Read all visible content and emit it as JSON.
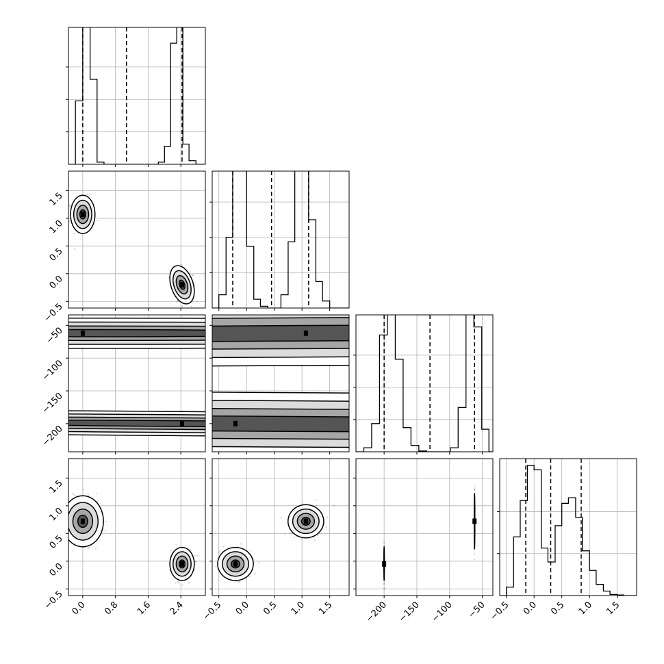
{
  "chart_data": {
    "type": "corner",
    "grid": true,
    "parameters": [
      {
        "range": [
          -0.35,
          3.0
        ],
        "ticks": [
          0.0,
          0.8,
          1.6,
          2.4
        ],
        "tick_labels": [
          "0.0",
          "0.8",
          "1.6",
          "2.4"
        ],
        "quantiles": [
          0.0,
          1.07,
          2.43
        ],
        "histogram": {
          "edges": [
            -0.35,
            -0.18,
            0.0,
            0.18,
            0.35,
            0.52,
            1.85,
            2.0,
            2.15,
            2.3,
            2.45,
            2.6,
            2.77,
            3.0
          ],
          "counts": [
            0,
            88,
            300,
            118,
            3,
            0,
            3,
            25,
            168,
            198,
            28,
            5,
            0
          ]
        }
      },
      {
        "range": [
          -0.62,
          1.85
        ],
        "ticks": [
          -0.5,
          0.0,
          0.5,
          1.0,
          1.5
        ],
        "tick_labels": [
          "−0.5",
          "0.0",
          "0.5",
          "1.0",
          "1.5"
        ],
        "quantiles": [
          -0.25,
          0.45,
          1.12
        ],
        "histogram": {
          "edges": [
            -0.62,
            -0.5,
            -0.37,
            -0.25,
            -0.12,
            0.0,
            0.13,
            0.25,
            0.38,
            0.5,
            0.62,
            0.75,
            0.87,
            1.0,
            1.12,
            1.25,
            1.37,
            1.5,
            1.62,
            1.85
          ],
          "counts": [
            0,
            15,
            80,
            325,
            260,
            70,
            10,
            2,
            0,
            0,
            15,
            75,
            255,
            280,
            100,
            30,
            8,
            0,
            0
          ]
        }
      },
      {
        "range": [
          -243,
          -34
        ],
        "ticks": [
          -200,
          -150,
          -100,
          -50
        ],
        "tick_labels": [
          "−200",
          "−150",
          "−100",
          "−50"
        ],
        "quantiles": [
          -200,
          -130,
          -62
        ],
        "histogram": {
          "edges": [
            -243,
            -231,
            -219,
            -207,
            -195,
            -183,
            -171,
            -159,
            -147,
            -135,
            -123,
            -111,
            -99,
            -87,
            -75,
            -63,
            -51,
            -40,
            -34
          ],
          "counts": [
            0,
            5,
            35,
            145,
            205,
            115,
            30,
            8,
            1,
            0,
            0,
            0,
            5,
            55,
            210,
            155,
            28,
            0
          ]
        }
      },
      {
        "range": [
          -0.62,
          1.85
        ],
        "ticks": [
          -0.5,
          0.0,
          0.5,
          1.0,
          1.5
        ],
        "tick_labels": [
          "−0.5",
          "0.0",
          "0.5",
          "1.0",
          "1.5"
        ],
        "quantiles": [
          -0.15,
          0.3,
          0.85
        ],
        "histogram": {
          "edges": [
            -0.62,
            -0.5,
            -0.37,
            -0.25,
            -0.12,
            0.0,
            0.13,
            0.25,
            0.38,
            0.5,
            0.62,
            0.75,
            0.87,
            1.0,
            1.12,
            1.25,
            1.37,
            1.5,
            1.62,
            1.85
          ],
          "counts": [
            0,
            15,
            105,
            170,
            233,
            225,
            85,
            60,
            125,
            165,
            175,
            140,
            80,
            45,
            20,
            8,
            2,
            1,
            0
          ]
        }
      }
    ],
    "hist_ylims": [
      [
        0,
        190
      ],
      [
        0,
        155
      ],
      [
        0,
        170
      ],
      [
        0,
        245
      ]
    ],
    "hist_ticks": [
      [
        45,
        90,
        135
      ],
      [
        40,
        80,
        120
      ],
      [
        40,
        80,
        120
      ],
      [
        75,
        150
      ]
    ],
    "clusters": [
      [
        0.0,
        1.07,
        -62,
        0.72
      ],
      [
        2.43,
        -0.2,
        -200,
        -0.05
      ]
    ],
    "cluster_spread": [
      [
        [
          0.05,
          0.16
        ],
        [
          0.13,
          0.13
        ],
        [
          11,
          13
        ],
        [
          0.22,
          0.13
        ]
      ],
      [
        [
          0.15,
          0.15
        ],
        [
          0.2,
          0.2
        ],
        [
          24,
          24
        ],
        [
          0.14,
          0.14
        ]
      ],
      [
        [
          10,
          10
        ],
        [
          24,
          24
        ],
        [
          11,
          22
        ],
        [
          0.22,
          0.13
        ]
      ],
      [
        [
          0.2,
          0.13
        ],
        [
          0.13,
          0.13
        ],
        [
          0.22,
          0.13
        ],
        [
          0.22,
          0.13
        ]
      ]
    ],
    "cluster_correlation": [
      [
        [
          1,
          0
        ],
        [
          0,
          -0.35
        ],
        [
          0,
          -0.6
        ],
        [
          0,
          0
        ]
      ],
      [
        [
          0,
          -0.35
        ],
        [
          1,
          0
        ],
        [
          0.45,
          -0.5
        ],
        [
          0,
          0
        ]
      ],
      [
        [
          0,
          -0.6
        ],
        [
          0.45,
          -0.5
        ],
        [
          1,
          0
        ],
        [
          0,
          0
        ]
      ],
      [
        [
          0,
          0
        ],
        [
          0,
          0
        ],
        [
          0,
          0
        ],
        [
          1,
          0
        ]
      ]
    ]
  }
}
